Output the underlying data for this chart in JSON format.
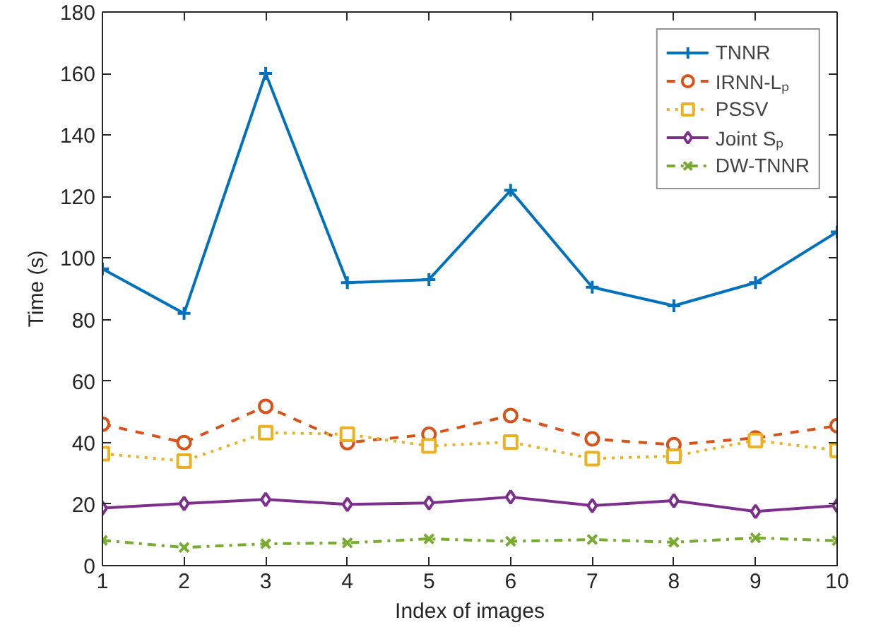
{
  "chart_data": {
    "type": "line",
    "xlabel": "Index of images",
    "ylabel": "Time (s)",
    "x": [
      1,
      2,
      3,
      4,
      5,
      6,
      7,
      8,
      9,
      10
    ],
    "xlim": [
      1,
      10
    ],
    "xticks": [
      1,
      2,
      3,
      4,
      5,
      6,
      7,
      8,
      9,
      10
    ],
    "ylim": [
      0,
      180
    ],
    "yticks": [
      0,
      20,
      40,
      60,
      80,
      100,
      120,
      140,
      160,
      180
    ],
    "grid": false,
    "legend": "top right",
    "series": [
      {
        "name": "TNNR",
        "color": "#0072bd",
        "marker": "cross",
        "line_style": "solid",
        "values": [
          96.5,
          82,
          160,
          92,
          93,
          122,
          90.5,
          84.5,
          92,
          108.5
        ]
      },
      {
        "name": "IRNN-Lₚ",
        "color": "#d95319",
        "marker": "circle",
        "line_style": "dashed",
        "values": [
          46,
          40,
          51.8,
          40,
          42.7,
          48.8,
          41.2,
          39.3,
          41.5,
          45.5
        ]
      },
      {
        "name": "PSSV",
        "color": "#edb120",
        "marker": "square",
        "line_style": "dotted",
        "values": [
          36.4,
          34,
          43.2,
          42.7,
          38.9,
          40.2,
          34.8,
          35.6,
          40.7,
          37.5
        ]
      },
      {
        "name": "Joint Sₚ",
        "color": "#7e2f8e",
        "marker": "diamond",
        "line_style": "solid",
        "values": [
          18.7,
          20.2,
          21.5,
          19.9,
          20.4,
          22.3,
          19.5,
          21.1,
          17.6,
          19.5
        ]
      },
      {
        "name": "DW-TNNR",
        "color": "#77ac30",
        "marker": "x",
        "line_style": "dashdot",
        "values": [
          8.2,
          5.9,
          7.1,
          7.4,
          8.7,
          7.9,
          8.5,
          7.6,
          9,
          8.1
        ]
      }
    ]
  }
}
